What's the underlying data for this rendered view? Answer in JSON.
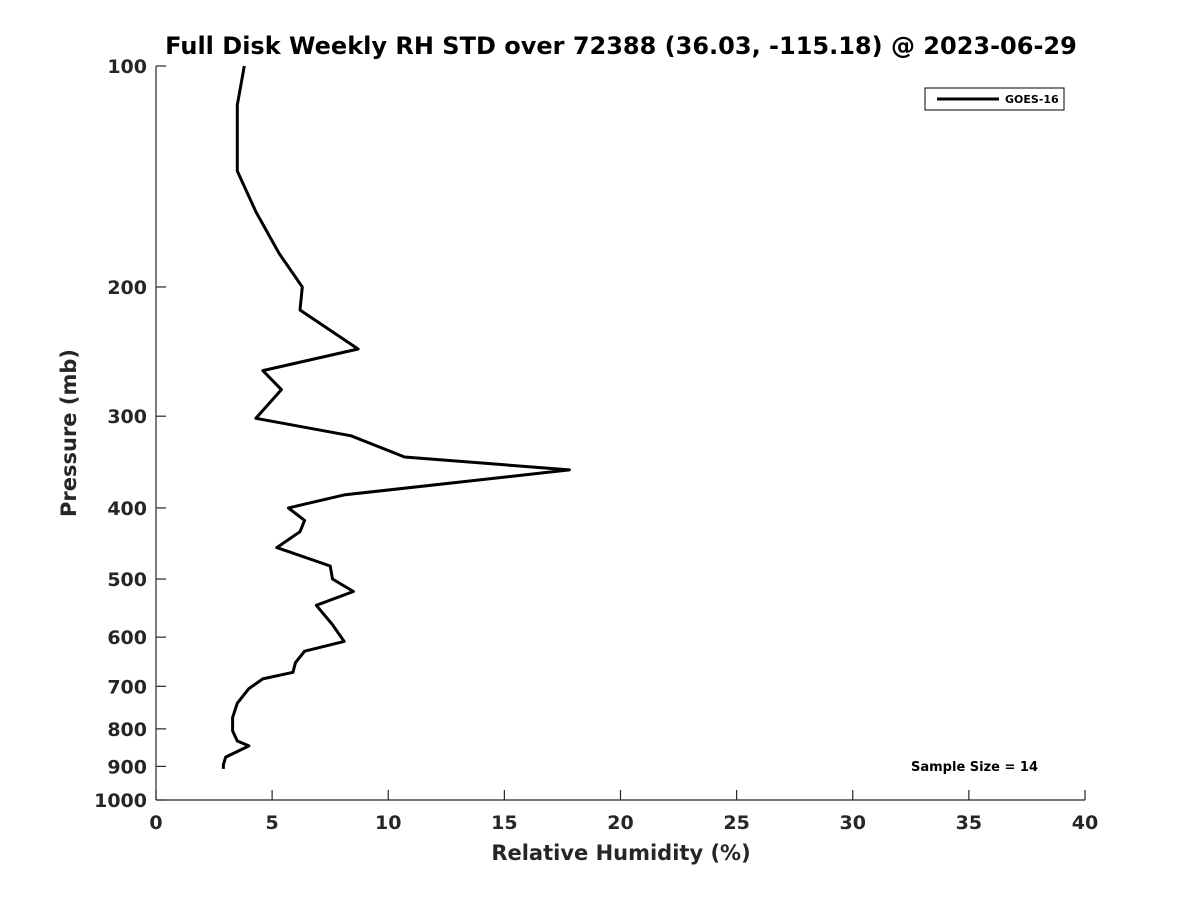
{
  "chart_data": {
    "type": "line",
    "title": "Full Disk Weekly RH STD over 72388 (36.03, -115.18) @ 2023-06-29",
    "xlabel": "Relative Humidity (%)",
    "ylabel": "Pressure (mb)",
    "xlim": [
      0,
      40
    ],
    "ylim": [
      1000,
      100
    ],
    "yscale": "log",
    "y_inverted": true,
    "x_ticks": [
      0,
      5,
      10,
      15,
      20,
      25,
      30,
      35,
      40
    ],
    "x_tick_labels": [
      "0",
      "5",
      "10",
      "15",
      "20",
      "25",
      "30",
      "35",
      "40"
    ],
    "y_ticks": [
      100,
      200,
      300,
      400,
      500,
      600,
      700,
      800,
      900,
      1000
    ],
    "y_tick_labels": [
      "100",
      "200",
      "300",
      "400",
      "500",
      "600",
      "700",
      "800",
      "900",
      "1000"
    ],
    "grid": false,
    "legend_position": "top-right",
    "line_color": "#000000",
    "annotation": "Sample Size = 14",
    "series": [
      {
        "name": "GOES-16",
        "x": [
          3.8,
          3.5,
          3.5,
          3.5,
          4.3,
          5.3,
          6.3,
          6.2,
          8.7,
          4.6,
          5.4,
          4.3,
          8.4,
          10.7,
          17.8,
          8.1,
          6.3,
          5.7,
          6.4,
          6.2,
          5.2,
          7.5,
          7.6,
          8.5,
          6.9,
          7.6,
          8.1,
          6.4,
          6.0,
          5.9,
          4.6,
          4.0,
          3.5,
          3.3,
          3.3,
          3.5,
          4.0,
          3.0,
          2.9,
          2.9
        ],
        "y": [
          100,
          113,
          124,
          139,
          158,
          180,
          200,
          215,
          243,
          260,
          276,
          302,
          319,
          341,
          355,
          384,
          396,
          400,
          416,
          431,
          453,
          480,
          500,
          520,
          543,
          577,
          608,
          627,
          650,
          670,
          684,
          705,
          738,
          772,
          805,
          831,
          844,
          874,
          895,
          907
        ]
      }
    ]
  }
}
